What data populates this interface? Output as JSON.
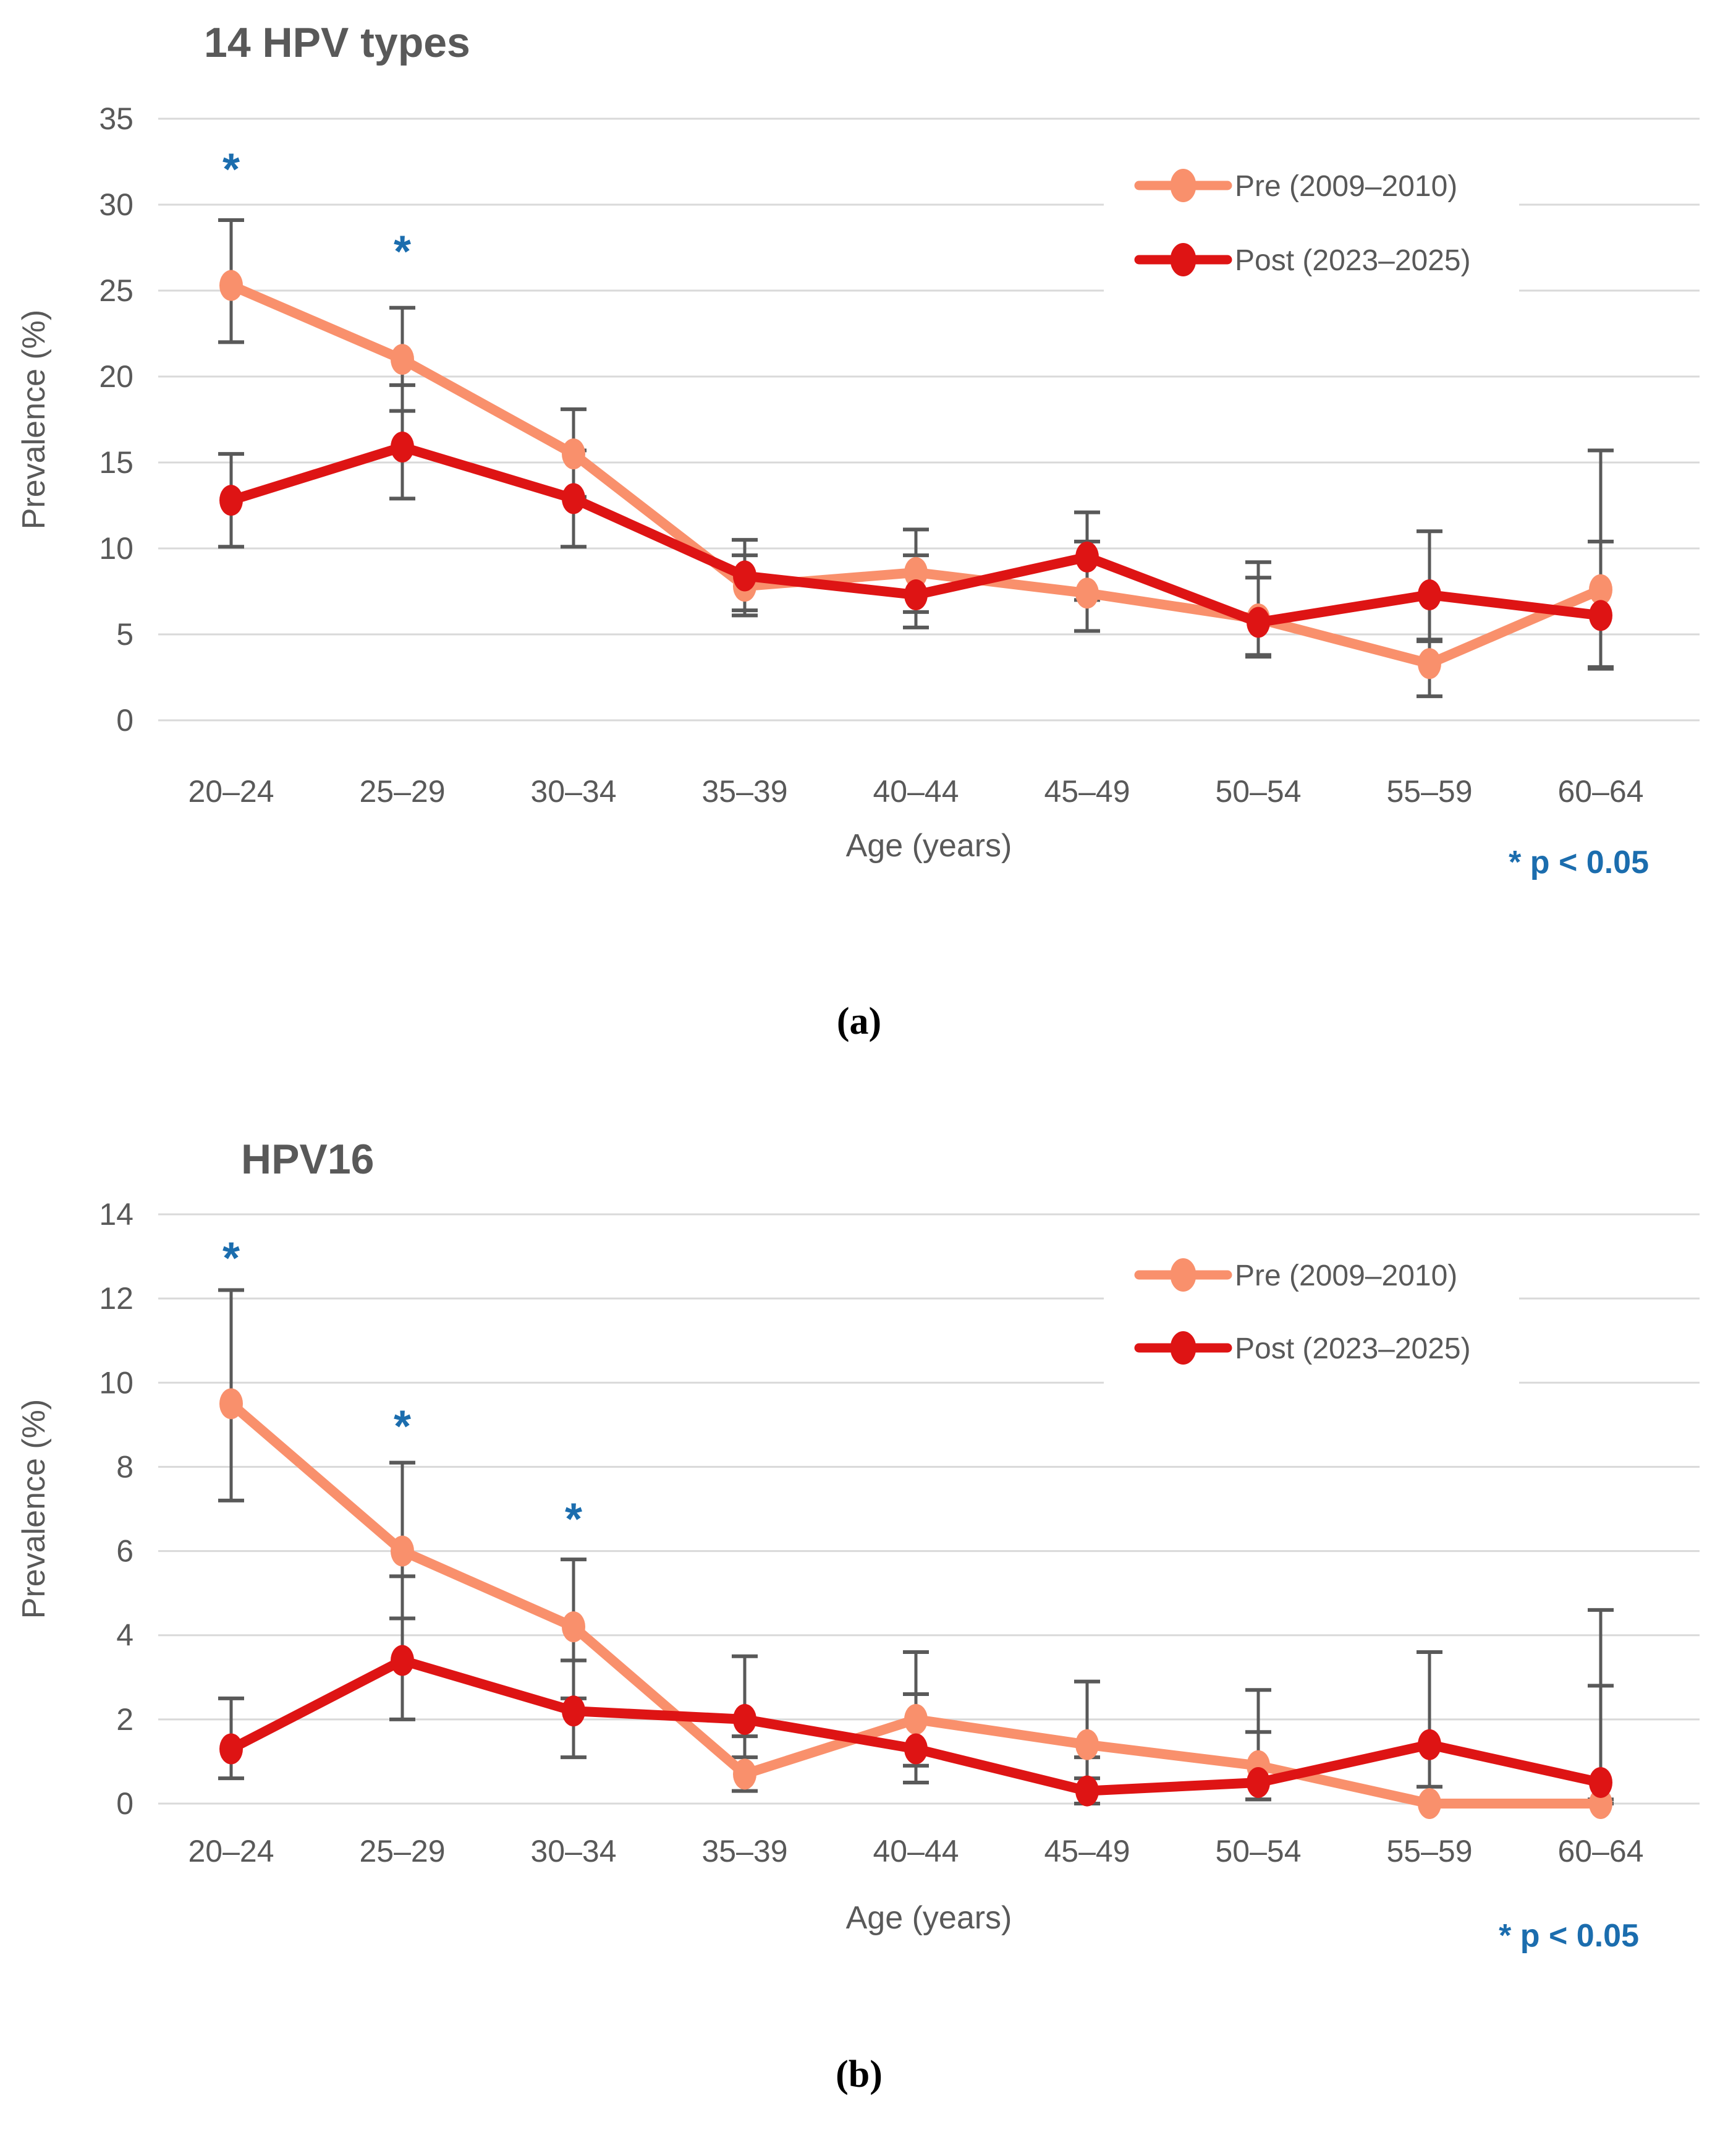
{
  "colors": {
    "pre_series": "#F9906C",
    "post_series": "#DE1414",
    "error_bar": "#595959",
    "gridline": "#D9D9D9",
    "axis_text": "#595959",
    "title_text": "#595959",
    "annotation_blue": "#1B6DAE",
    "panel_label_text": "#000000",
    "background": "#FFFFFF"
  },
  "chart_data": [
    {
      "panel_label": "(a)",
      "type": "line",
      "title": "14 HPV types",
      "xlabel": "Age (years)",
      "ylabel": "Prevalence (%)",
      "ylim": [
        0,
        35
      ],
      "yticks": [
        0,
        5,
        10,
        15,
        20,
        25,
        30,
        35
      ],
      "grid": true,
      "legend_position": "upper right",
      "note": "* p < 0.05",
      "categories": [
        "20–24",
        "25–29",
        "30–34",
        "35–39",
        "40–44",
        "45–49",
        "50–54",
        "55–59",
        "60–64"
      ],
      "series": [
        {
          "name": "Pre (2009–2010)",
          "color_key": "pre_series",
          "values": [
            25.3,
            21.0,
            15.5,
            7.8,
            8.6,
            7.4,
            5.9,
            3.3,
            7.6
          ],
          "ci_low": [
            22.0,
            18.0,
            13.0,
            6.1,
            6.3,
            5.2,
            3.7,
            1.4,
            3.0
          ],
          "ci_high": [
            29.1,
            24.0,
            18.1,
            9.6,
            11.1,
            10.4,
            9.2,
            4.7,
            15.7
          ]
        },
        {
          "name": "Post (2023–2025)",
          "color_key": "post_series",
          "values": [
            12.8,
            15.9,
            12.9,
            8.4,
            7.3,
            9.5,
            5.7,
            7.3,
            6.1
          ],
          "ci_low": [
            10.1,
            12.9,
            10.1,
            6.4,
            5.4,
            7.0,
            3.8,
            4.6,
            3.1
          ],
          "ci_high": [
            15.5,
            19.5,
            15.7,
            10.5,
            9.6,
            12.1,
            8.3,
            11.0,
            10.4
          ]
        }
      ],
      "significance": [
        {
          "category": "20–24",
          "symbol": "*",
          "y": 32.4
        },
        {
          "category": "25–29",
          "symbol": "*",
          "y": 27.6
        }
      ]
    },
    {
      "panel_label": "(b)",
      "type": "line",
      "title": "HPV16",
      "xlabel": "Age (years)",
      "ylabel": "Prevalence (%)",
      "ylim": [
        0,
        14
      ],
      "yticks": [
        0,
        2,
        4,
        6,
        8,
        10,
        12,
        14
      ],
      "grid": true,
      "legend_position": "upper right",
      "note": "* p < 0.05",
      "categories": [
        "20–24",
        "25–29",
        "30–34",
        "35–39",
        "40–44",
        "45–49",
        "50–54",
        "55–59",
        "60–64"
      ],
      "series": [
        {
          "name": "Pre (2009–2010)",
          "color_key": "pre_series",
          "values": [
            9.5,
            6.0,
            4.2,
            0.7,
            2.0,
            1.4,
            0.9,
            0.0,
            0.0
          ],
          "ci_low": [
            7.2,
            4.4,
            2.5,
            0.3,
            0.9,
            0.6,
            0.1,
            0.0,
            0.0
          ],
          "ci_high": [
            12.2,
            8.1,
            5.8,
            1.6,
            3.6,
            2.9,
            2.7,
            0.0,
            2.8
          ]
        },
        {
          "name": "Post (2023–2025)",
          "color_key": "post_series",
          "values": [
            1.3,
            3.4,
            2.2,
            2.0,
            1.3,
            0.3,
            0.5,
            1.4,
            0.5
          ],
          "ci_low": [
            0.6,
            2.0,
            1.1,
            1.1,
            0.5,
            0.0,
            0.1,
            0.4,
            0.1
          ],
          "ci_high": [
            2.5,
            5.4,
            3.4,
            3.5,
            2.6,
            1.1,
            1.7,
            3.6,
            4.6
          ]
        }
      ],
      "significance": [
        {
          "category": "20–24",
          "symbol": "*",
          "y": 13.1
        },
        {
          "category": "25–29",
          "symbol": "*",
          "y": 9.1
        },
        {
          "category": "30–34",
          "symbol": "*",
          "y": 6.9
        }
      ]
    }
  ]
}
